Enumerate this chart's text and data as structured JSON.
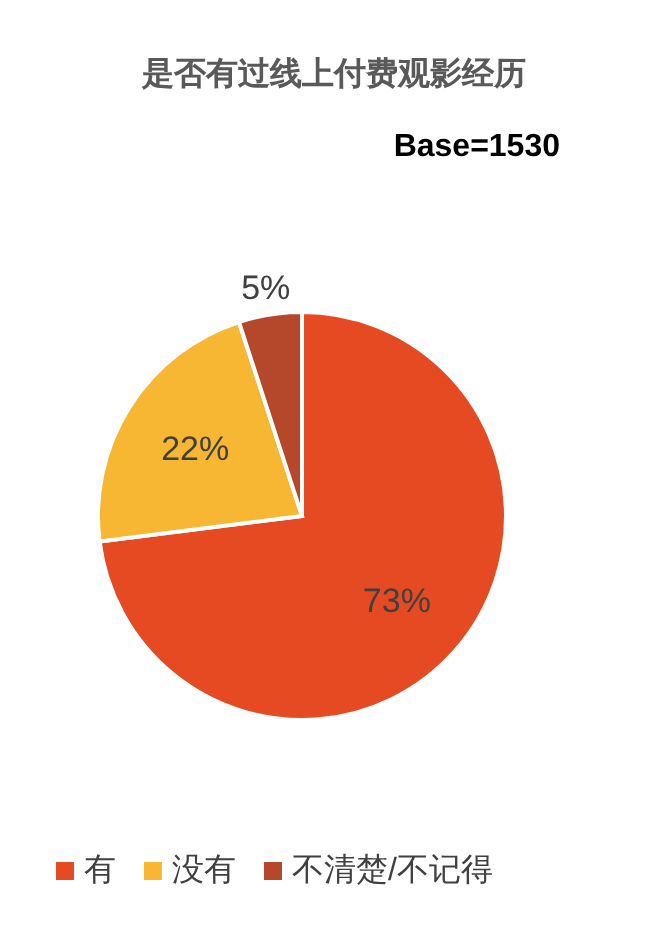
{
  "chart_data": {
    "type": "pie",
    "title": "是否有过线上付费观影经历",
    "subtitle": "Base=1530",
    "categories": [
      "有",
      "没有",
      "不清楚/不记得"
    ],
    "values": [
      73,
      22,
      5
    ],
    "colors": [
      "#e64a22",
      "#f7b733",
      "#b5472b"
    ],
    "value_labels": [
      "73%",
      "22%",
      "5%"
    ],
    "legend": "bottom"
  }
}
